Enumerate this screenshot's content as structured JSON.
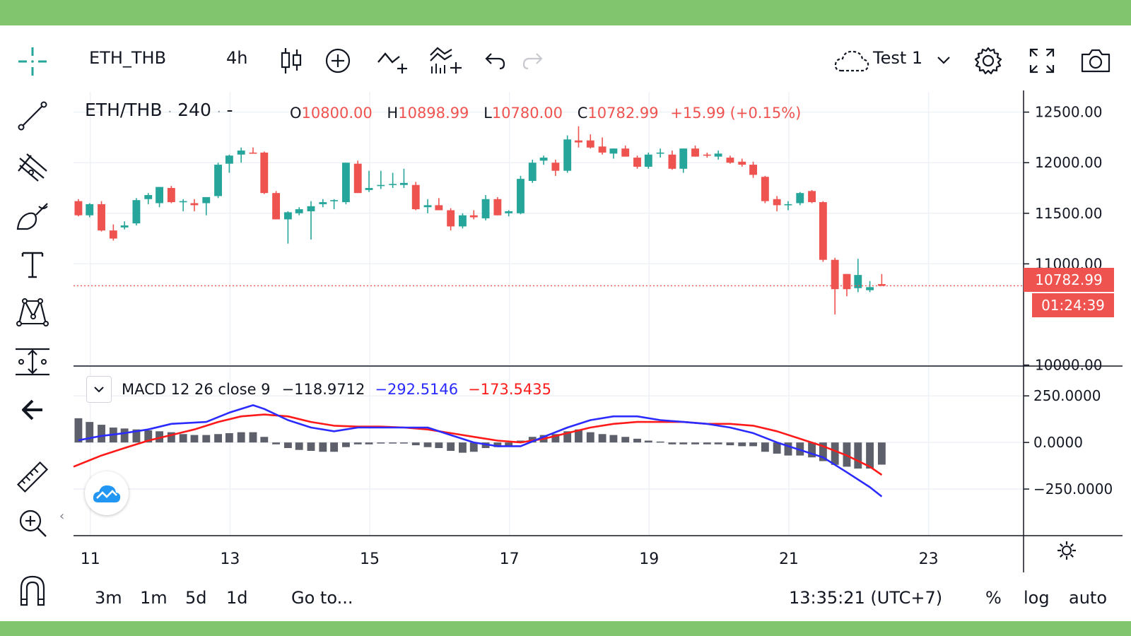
{
  "toolbar": {
    "symbol": "ETH_THB",
    "interval": "4h",
    "layout_name": "Test 1",
    "icons": [
      "crosshair-icon",
      "candles-icon",
      "add-symbol-icon",
      "indicators-icon",
      "templates-icon",
      "undo-icon",
      "redo-icon",
      "cloud-icon",
      "chevron-down-icon",
      "gear-icon",
      "fullscreen-icon",
      "camera-icon"
    ]
  },
  "left_tools": [
    "crosshair-icon",
    "trend-line-icon",
    "pitchfork-icon",
    "brush-icon",
    "text-icon",
    "pattern-icon",
    "measure-ruler-icon",
    "back-arrow-icon",
    "ruler-icon",
    "zoom-in-icon",
    "magnet-icon"
  ],
  "legend": {
    "pair": "ETH/THB",
    "dot": "·",
    "resolution": "240",
    "dash": "-",
    "o_label": "O",
    "o_value": "10800.00",
    "h_label": "H",
    "h_value": "10898.99",
    "l_label": "L",
    "l_value": "10780.00",
    "c_label": "C",
    "c_value": "10782.99",
    "change": "+15.99 (+0.15%)"
  },
  "macd_legend": {
    "name": "MACD 12 26 close 9",
    "hist": "−118.9712",
    "macd": "−292.5146",
    "signal": "−173.5435"
  },
  "price_tag": {
    "price": "10782.99",
    "countdown": "01:24:39"
  },
  "bottom": {
    "ranges": [
      "3m",
      "1m",
      "5d",
      "1d"
    ],
    "goto": "Go to...",
    "time": "13:35:21 (UTC+7)",
    "percent": "%",
    "log": "log",
    "auto": "auto"
  },
  "colors": {
    "up": "#26a69a",
    "down": "#ef5350",
    "macd": "#2b2bff",
    "signal": "#ff1a1a",
    "hist": "#5d606b",
    "band": "#81c56f"
  },
  "chart_data": {
    "type": "candlestick",
    "title": "ETH/THB · 240",
    "y_ticks": [
      "12500.00",
      "12000.00",
      "11500.00",
      "11000.00",
      "10000.00"
    ],
    "y_tick_values": [
      12500,
      12000,
      11500,
      11000,
      10000
    ],
    "ylim": [
      9990,
      12700
    ],
    "x_ticks": [
      "11",
      "13",
      "15",
      "17",
      "19",
      "21",
      "23"
    ],
    "x_tick_values": [
      11,
      13,
      15,
      17,
      19,
      21,
      23
    ],
    "xlim": [
      10.76,
      24.36
    ],
    "candle_period_days": 0.1667,
    "candles": [
      [
        10.83,
        11620,
        11640,
        11470,
        11480
      ],
      [
        10.99,
        11480,
        11600,
        11460,
        11590
      ],
      [
        11.16,
        11590,
        11620,
        11320,
        11330
      ],
      [
        11.33,
        11330,
        11390,
        11230,
        11250
      ],
      [
        11.49,
        11360,
        11420,
        11340,
        11380
      ],
      [
        11.66,
        11400,
        11650,
        11380,
        11630
      ],
      [
        11.83,
        11640,
        11700,
        11590,
        11680
      ],
      [
        11.99,
        11600,
        11760,
        11560,
        11760
      ],
      [
        12.16,
        11750,
        11770,
        11600,
        11610
      ],
      [
        12.33,
        11620,
        11640,
        11520,
        11620
      ],
      [
        12.49,
        11600,
        11640,
        11520,
        11580
      ],
      [
        12.66,
        11600,
        11660,
        11480,
        11660
      ],
      [
        12.83,
        11670,
        12000,
        11650,
        11980
      ],
      [
        12.99,
        11990,
        12080,
        11900,
        12070
      ],
      [
        13.16,
        12080,
        12150,
        12000,
        12120
      ],
      [
        13.33,
        12100,
        12150,
        12090,
        12090
      ],
      [
        13.49,
        12100,
        12110,
        11690,
        11700
      ],
      [
        13.66,
        11700,
        11720,
        11440,
        11440
      ],
      [
        13.83,
        11440,
        11520,
        11200,
        11510
      ],
      [
        13.99,
        11500,
        11560,
        11480,
        11540
      ],
      [
        14.16,
        11520,
        11620,
        11240,
        11570
      ],
      [
        14.33,
        11590,
        11640,
        11560,
        11610
      ],
      [
        14.49,
        11620,
        11640,
        11540,
        11630
      ],
      [
        14.66,
        11610,
        12000,
        11590,
        12000
      ],
      [
        14.83,
        11990,
        12020,
        11700,
        11700
      ],
      [
        14.99,
        11730,
        11920,
        11710,
        11750
      ],
      [
        15.16,
        11770,
        11920,
        11740,
        11780
      ],
      [
        15.33,
        11780,
        11900,
        11750,
        11790
      ],
      [
        15.49,
        11780,
        11940,
        11750,
        11800
      ],
      [
        15.66,
        11780,
        11810,
        11530,
        11540
      ],
      [
        15.83,
        11560,
        11640,
        11500,
        11580
      ],
      [
        15.99,
        11580,
        11650,
        11530,
        11530
      ],
      [
        16.16,
        11530,
        11550,
        11330,
        11370
      ],
      [
        16.33,
        11370,
        11500,
        11350,
        11480
      ],
      [
        16.49,
        11480,
        11530,
        11440,
        11460
      ],
      [
        16.66,
        11450,
        11680,
        11430,
        11640
      ],
      [
        16.83,
        11640,
        11660,
        11480,
        11480
      ],
      [
        16.99,
        11500,
        11530,
        11470,
        11520
      ],
      [
        17.16,
        11500,
        11870,
        11490,
        11840
      ],
      [
        17.33,
        11820,
        12030,
        11800,
        12000
      ],
      [
        17.49,
        12020,
        12070,
        11980,
        12050
      ],
      [
        17.66,
        12000,
        12030,
        11870,
        11920
      ],
      [
        17.83,
        11920,
        12270,
        11900,
        12230
      ],
      [
        17.99,
        12220,
        12360,
        12150,
        12200
      ],
      [
        18.16,
        12220,
        12280,
        12140,
        12150
      ],
      [
        18.33,
        12160,
        12250,
        12080,
        12100
      ],
      [
        18.49,
        12090,
        12140,
        12040,
        12140
      ],
      [
        18.66,
        12140,
        12170,
        12060,
        12060
      ],
      [
        18.83,
        12050,
        12070,
        11940,
        11960
      ],
      [
        18.99,
        11960,
        12100,
        11940,
        12080
      ],
      [
        19.16,
        12100,
        12140,
        12050,
        12100
      ],
      [
        19.33,
        12080,
        12120,
        11930,
        11940
      ],
      [
        19.49,
        11940,
        12140,
        11900,
        12140
      ],
      [
        19.66,
        12140,
        12170,
        12060,
        12060
      ],
      [
        19.83,
        12080,
        12100,
        12050,
        12070
      ],
      [
        19.99,
        12060,
        12120,
        12030,
        12090
      ],
      [
        20.16,
        12050,
        12070,
        11990,
        12000
      ],
      [
        20.33,
        12010,
        12040,
        11960,
        11980
      ],
      [
        20.49,
        11980,
        12010,
        11850,
        11880
      ],
      [
        20.66,
        11860,
        11870,
        11600,
        11620
      ],
      [
        20.83,
        11640,
        11670,
        11520,
        11580
      ],
      [
        20.99,
        11580,
        11620,
        11530,
        11590
      ],
      [
        21.16,
        11600,
        11710,
        11580,
        11700
      ],
      [
        21.33,
        11720,
        11730,
        11600,
        11610
      ],
      [
        21.49,
        11610,
        11620,
        11020,
        11040
      ],
      [
        21.66,
        11040,
        11060,
        10500,
        10750
      ],
      [
        21.83,
        10900,
        10900,
        10680,
        10750
      ],
      [
        21.99,
        10760,
        11050,
        10720,
        10890
      ],
      [
        22.16,
        10740,
        10830,
        10720,
        10770
      ],
      [
        22.33,
        10800,
        10900,
        10780,
        10783
      ]
    ],
    "last_price": 10782.99,
    "macd": {
      "params": "12 26 close 9",
      "y_ticks": [
        "250.0000",
        "0.0000",
        "−250.0000"
      ],
      "y_tick_values": [
        250,
        0,
        -250
      ],
      "ylim": [
        -500,
        410
      ],
      "macd_line": [
        [
          10.83,
          12
        ],
        [
          11.16,
          35
        ],
        [
          11.49,
          50
        ],
        [
          11.83,
          70
        ],
        [
          12.16,
          100
        ],
        [
          12.66,
          110
        ],
        [
          12.99,
          160
        ],
        [
          13.33,
          200
        ],
        [
          13.49,
          180
        ],
        [
          13.83,
          120
        ],
        [
          14.16,
          80
        ],
        [
          14.49,
          60
        ],
        [
          14.83,
          80
        ],
        [
          15.16,
          80
        ],
        [
          15.49,
          80
        ],
        [
          15.83,
          80
        ],
        [
          16.16,
          40
        ],
        [
          16.49,
          0
        ],
        [
          16.83,
          -20
        ],
        [
          17.16,
          -20
        ],
        [
          17.49,
          30
        ],
        [
          17.83,
          80
        ],
        [
          18.16,
          120
        ],
        [
          18.49,
          140
        ],
        [
          18.83,
          140
        ],
        [
          19.16,
          120
        ],
        [
          19.49,
          110
        ],
        [
          19.83,
          100
        ],
        [
          20.16,
          80
        ],
        [
          20.49,
          50
        ],
        [
          20.83,
          0
        ],
        [
          21.16,
          -40
        ],
        [
          21.49,
          -80
        ],
        [
          21.83,
          -160
        ],
        [
          22.16,
          -240
        ],
        [
          22.33,
          -290
        ]
      ],
      "signal_line": [
        [
          10.76,
          -130
        ],
        [
          11.16,
          -70
        ],
        [
          11.49,
          -30
        ],
        [
          11.83,
          10
        ],
        [
          12.16,
          40
        ],
        [
          12.49,
          70
        ],
        [
          12.83,
          110
        ],
        [
          13.16,
          140
        ],
        [
          13.49,
          150
        ],
        [
          13.83,
          140
        ],
        [
          14.16,
          110
        ],
        [
          14.49,
          90
        ],
        [
          14.83,
          85
        ],
        [
          15.16,
          85
        ],
        [
          15.49,
          80
        ],
        [
          15.83,
          70
        ],
        [
          16.16,
          50
        ],
        [
          16.49,
          30
        ],
        [
          16.83,
          10
        ],
        [
          17.16,
          0
        ],
        [
          17.49,
          20
        ],
        [
          17.83,
          50
        ],
        [
          18.16,
          80
        ],
        [
          18.49,
          100
        ],
        [
          18.83,
          110
        ],
        [
          19.16,
          110
        ],
        [
          19.49,
          110
        ],
        [
          19.83,
          100
        ],
        [
          20.16,
          100
        ],
        [
          20.49,
          90
        ],
        [
          20.83,
          60
        ],
        [
          21.16,
          20
        ],
        [
          21.49,
          -20
        ],
        [
          21.83,
          -70
        ],
        [
          22.16,
          -130
        ],
        [
          22.33,
          -174
        ]
      ],
      "histogram": [
        [
          10.83,
          130
        ],
        [
          10.99,
          110
        ],
        [
          11.16,
          95
        ],
        [
          11.33,
          80
        ],
        [
          11.49,
          75
        ],
        [
          11.66,
          70
        ],
        [
          11.83,
          65
        ],
        [
          11.99,
          60
        ],
        [
          12.16,
          55
        ],
        [
          12.33,
          45
        ],
        [
          12.49,
          40
        ],
        [
          12.66,
          40
        ],
        [
          12.83,
          45
        ],
        [
          12.99,
          50
        ],
        [
          13.16,
          55
        ],
        [
          13.33,
          55
        ],
        [
          13.49,
          30
        ],
        [
          13.66,
          -10
        ],
        [
          13.83,
          -30
        ],
        [
          13.99,
          -40
        ],
        [
          14.16,
          -45
        ],
        [
          14.33,
          -50
        ],
        [
          14.49,
          -50
        ],
        [
          14.66,
          -25
        ],
        [
          14.83,
          -10
        ],
        [
          14.99,
          -10
        ],
        [
          15.16,
          -5
        ],
        [
          15.33,
          -5
        ],
        [
          15.49,
          -5
        ],
        [
          15.66,
          -15
        ],
        [
          15.83,
          -25
        ],
        [
          15.99,
          -30
        ],
        [
          16.16,
          -45
        ],
        [
          16.33,
          -55
        ],
        [
          16.49,
          -50
        ],
        [
          16.66,
          -30
        ],
        [
          16.83,
          -25
        ],
        [
          16.99,
          -20
        ],
        [
          17.16,
          10
        ],
        [
          17.33,
          30
        ],
        [
          17.49,
          40
        ],
        [
          17.66,
          45
        ],
        [
          17.83,
          60
        ],
        [
          17.99,
          70
        ],
        [
          18.16,
          55
        ],
        [
          18.33,
          45
        ],
        [
          18.49,
          40
        ],
        [
          18.66,
          30
        ],
        [
          18.83,
          20
        ],
        [
          18.99,
          10
        ],
        [
          19.16,
          5
        ],
        [
          19.33,
          -10
        ],
        [
          19.49,
          -10
        ],
        [
          19.66,
          -10
        ],
        [
          19.83,
          -10
        ],
        [
          19.99,
          -10
        ],
        [
          20.16,
          -15
        ],
        [
          20.33,
          -20
        ],
        [
          20.49,
          -20
        ],
        [
          20.66,
          -50
        ],
        [
          20.83,
          -60
        ],
        [
          20.99,
          -70
        ],
        [
          21.16,
          -70
        ],
        [
          21.33,
          -80
        ],
        [
          21.49,
          -100
        ],
        [
          21.66,
          -120
        ],
        [
          21.83,
          -130
        ],
        [
          21.99,
          -140
        ],
        [
          22.16,
          -140
        ],
        [
          22.33,
          -119
        ]
      ]
    }
  }
}
